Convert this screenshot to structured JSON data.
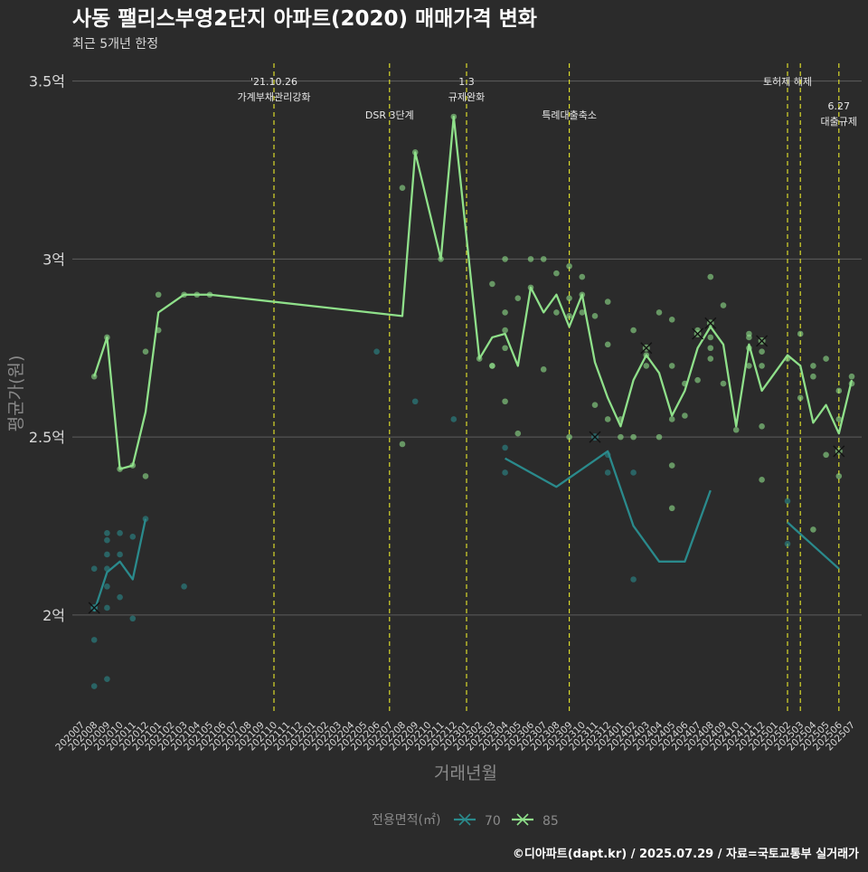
{
  "colors": {
    "background": "#2b2b2b",
    "grid": "#5e5e5e",
    "event_line": "#d9d92a",
    "series_70": "#2a8a8c",
    "series_85": "#8fe08a",
    "text": "#d8d8d8",
    "axis_title": "#8a8a8a"
  },
  "footer": "©디아파트(dapt.kr) / 2025.07.29 / 자료=국토교통부 실거래가",
  "chart_data": {
    "type": "line",
    "title": "사동 팰리스부영2단지 아파트(2020) 매매가격 변화",
    "subtitle": "최근 5개년 한정",
    "xlabel": "거래년월",
    "ylabel": "평균가(원)",
    "ylim": [
      1.72,
      3.55
    ],
    "yticks": [
      {
        "value": 2.0,
        "label": "2억"
      },
      {
        "value": 2.5,
        "label": "2.5억"
      },
      {
        "value": 3.0,
        "label": "3억"
      },
      {
        "value": 3.5,
        "label": "3.5억"
      }
    ],
    "categories": [
      "202007",
      "202008",
      "202009",
      "202010",
      "202011",
      "202012",
      "202101",
      "202102",
      "202103",
      "202104",
      "202105",
      "202106",
      "202107",
      "202108",
      "202109",
      "202110",
      "202111",
      "202112",
      "202201",
      "202202",
      "202203",
      "202204",
      "202205",
      "202206",
      "202207",
      "202208",
      "202209",
      "202210",
      "202211",
      "202212",
      "202301",
      "202302",
      "202303",
      "202304",
      "202305",
      "202306",
      "202307",
      "202308",
      "202309",
      "202310",
      "202311",
      "202312",
      "202401",
      "202402",
      "202403",
      "202404",
      "202405",
      "202406",
      "202407",
      "202408",
      "202409",
      "202410",
      "202411",
      "202412",
      "202501",
      "202502",
      "202503",
      "202504",
      "202505",
      "202506",
      "202507"
    ],
    "legend": {
      "title": "전용면적(㎡)",
      "placement": "bottom"
    },
    "events": [
      {
        "x": "202110",
        "label_lines": [
          "'21.10.26",
          "가계부채관리강화"
        ],
        "tier": 1
      },
      {
        "x": "202207",
        "label_lines": [
          "DSR 3단계"
        ],
        "tier": 2
      },
      {
        "x": "202301",
        "label_lines": [
          "1.3",
          "규제완화"
        ],
        "tier": 1
      },
      {
        "x": "202309",
        "label_lines": [
          "특례대출축소"
        ],
        "tier": 2
      },
      {
        "x": "202502",
        "label_lines": [
          "토허제 해제"
        ],
        "tier": 1
      },
      {
        "x": "202503",
        "label_lines": [],
        "tier": 1
      },
      {
        "x": "202506",
        "label_lines": [
          "6.27",
          "대출규제"
        ],
        "tier": 3
      }
    ],
    "series": [
      {
        "name": "70",
        "color_key": "series_70",
        "line": [
          [
            "202008",
            2.01
          ],
          [
            "202009",
            2.12
          ],
          [
            "202010",
            2.15
          ],
          [
            "202011",
            2.1
          ],
          [
            "202012",
            2.27
          ],
          null,
          [
            "202304",
            2.44
          ],
          [
            "202308",
            2.36
          ],
          [
            "202312",
            2.46
          ],
          [
            "202402",
            2.25
          ],
          [
            "202404",
            2.15
          ],
          [
            "202406",
            2.15
          ],
          [
            "202408",
            2.35
          ],
          null,
          [
            "202502",
            2.26
          ],
          [
            "202506",
            2.13
          ]
        ],
        "points": [
          [
            "202008",
            2.02
          ],
          [
            "202008",
            1.93
          ],
          [
            "202008",
            1.8
          ],
          [
            "202008",
            2.13
          ],
          [
            "202009",
            2.23
          ],
          [
            "202009",
            2.21
          ],
          [
            "202009",
            2.17
          ],
          [
            "202009",
            2.13
          ],
          [
            "202009",
            2.08
          ],
          [
            "202009",
            2.02
          ],
          [
            "202009",
            1.82
          ],
          [
            "202010",
            2.23
          ],
          [
            "202010",
            2.17
          ],
          [
            "202010",
            2.05
          ],
          [
            "202011",
            2.22
          ],
          [
            "202011",
            1.99
          ],
          [
            "202012",
            2.27
          ],
          [
            "202103",
            2.08
          ],
          [
            "202206",
            2.74
          ],
          [
            "202209",
            2.6
          ],
          [
            "202212",
            2.55
          ],
          [
            "202304",
            2.47
          ],
          [
            "202304",
            2.4
          ],
          [
            "202312",
            2.45
          ],
          [
            "202312",
            2.4
          ],
          [
            "202402",
            2.4
          ],
          [
            "202402",
            2.1
          ],
          [
            "202502",
            2.32
          ],
          [
            "202502",
            2.2
          ]
        ],
        "markers": [
          [
            "202008",
            2.02
          ],
          [
            "202311",
            2.5
          ]
        ]
      },
      {
        "name": "85",
        "color_key": "series_85",
        "line": [
          [
            "202008",
            2.67
          ],
          [
            "202009",
            2.78
          ],
          [
            "202010",
            2.41
          ],
          [
            "202011",
            2.42
          ],
          [
            "202012",
            2.57
          ],
          [
            "202101",
            2.85
          ],
          [
            "202103",
            2.9
          ],
          [
            "202104",
            2.9
          ],
          [
            "202105",
            2.9
          ],
          [
            "202208",
            2.84
          ],
          [
            "202209",
            3.3
          ],
          [
            "202211",
            3.0
          ],
          [
            "202212",
            3.4
          ],
          [
            "202302",
            2.72
          ],
          [
            "202303",
            2.78
          ],
          [
            "202304",
            2.79
          ],
          [
            "202305",
            2.7
          ],
          [
            "202306",
            2.92
          ],
          [
            "202307",
            2.85
          ],
          [
            "202308",
            2.9
          ],
          [
            "202309",
            2.81
          ],
          [
            "202310",
            2.9
          ],
          [
            "202311",
            2.71
          ],
          [
            "202312",
            2.61
          ],
          [
            "202401",
            2.53
          ],
          [
            "202402",
            2.66
          ],
          [
            "202403",
            2.73
          ],
          [
            "202404",
            2.68
          ],
          [
            "202405",
            2.56
          ],
          [
            "202406",
            2.63
          ],
          [
            "202407",
            2.75
          ],
          [
            "202408",
            2.81
          ],
          [
            "202409",
            2.76
          ],
          [
            "202410",
            2.53
          ],
          [
            "202411",
            2.76
          ],
          [
            "202412",
            2.63
          ],
          [
            "202501",
            2.68
          ],
          [
            "202502",
            2.73
          ],
          [
            "202503",
            2.7
          ],
          [
            "202504",
            2.54
          ],
          [
            "202505",
            2.59
          ],
          [
            "202506",
            2.51
          ],
          [
            "202507",
            2.66
          ]
        ],
        "points": [
          [
            "202008",
            2.67
          ],
          [
            "202009",
            2.78
          ],
          [
            "202010",
            2.41
          ],
          [
            "202011",
            2.42
          ],
          [
            "202012",
            2.74
          ],
          [
            "202012",
            2.39
          ],
          [
            "202101",
            2.9
          ],
          [
            "202101",
            2.8
          ],
          [
            "202103",
            2.9
          ],
          [
            "202104",
            2.9
          ],
          [
            "202105",
            2.9
          ],
          [
            "202208",
            3.2
          ],
          [
            "202208",
            2.48
          ],
          [
            "202209",
            3.3
          ],
          [
            "202211",
            3.0
          ],
          [
            "202212",
            3.4
          ],
          [
            "202302",
            2.72
          ],
          [
            "202303",
            2.93
          ],
          [
            "202303",
            2.7
          ],
          [
            "202303",
            2.7
          ],
          [
            "202304",
            3.0
          ],
          [
            "202304",
            2.85
          ],
          [
            "202304",
            2.8
          ],
          [
            "202304",
            2.75
          ],
          [
            "202304",
            2.6
          ],
          [
            "202305",
            2.89
          ],
          [
            "202305",
            2.51
          ],
          [
            "202306",
            3.0
          ],
          [
            "202306",
            2.92
          ],
          [
            "202307",
            3.0
          ],
          [
            "202307",
            2.69
          ],
          [
            "202308",
            2.96
          ],
          [
            "202308",
            2.85
          ],
          [
            "202309",
            2.98
          ],
          [
            "202309",
            2.89
          ],
          [
            "202309",
            2.84
          ],
          [
            "202309",
            2.5
          ],
          [
            "202310",
            2.95
          ],
          [
            "202310",
            2.9
          ],
          [
            "202310",
            2.85
          ],
          [
            "202311",
            2.84
          ],
          [
            "202311",
            2.59
          ],
          [
            "202312",
            2.88
          ],
          [
            "202312",
            2.76
          ],
          [
            "202312",
            2.55
          ],
          [
            "202401",
            2.55
          ],
          [
            "202401",
            2.5
          ],
          [
            "202402",
            2.8
          ],
          [
            "202402",
            2.5
          ],
          [
            "202403",
            2.73
          ],
          [
            "202403",
            2.7
          ],
          [
            "202404",
            2.85
          ],
          [
            "202404",
            2.5
          ],
          [
            "202405",
            2.83
          ],
          [
            "202405",
            2.7
          ],
          [
            "202405",
            2.55
          ],
          [
            "202405",
            2.42
          ],
          [
            "202405",
            2.3
          ],
          [
            "202406",
            2.65
          ],
          [
            "202406",
            2.56
          ],
          [
            "202407",
            2.66
          ],
          [
            "202407",
            2.8
          ],
          [
            "202408",
            2.95
          ],
          [
            "202408",
            2.78
          ],
          [
            "202408",
            2.75
          ],
          [
            "202408",
            2.72
          ],
          [
            "202409",
            2.87
          ],
          [
            "202409",
            2.65
          ],
          [
            "202410",
            2.52
          ],
          [
            "202411",
            2.79
          ],
          [
            "202411",
            2.78
          ],
          [
            "202411",
            2.75
          ],
          [
            "202411",
            2.7
          ],
          [
            "202412",
            2.74
          ],
          [
            "202412",
            2.7
          ],
          [
            "202412",
            2.53
          ],
          [
            "202412",
            2.38
          ],
          [
            "202502",
            2.72
          ],
          [
            "202503",
            2.79
          ],
          [
            "202503",
            2.61
          ],
          [
            "202504",
            2.7
          ],
          [
            "202504",
            2.67
          ],
          [
            "202504",
            2.24
          ],
          [
            "202505",
            2.72
          ],
          [
            "202505",
            2.45
          ],
          [
            "202506",
            2.63
          ],
          [
            "202506",
            2.55
          ],
          [
            "202506",
            2.39
          ],
          [
            "202507",
            2.67
          ],
          [
            "202507",
            2.65
          ]
        ],
        "markers": [
          [
            "202403",
            2.75
          ],
          [
            "202407",
            2.79
          ],
          [
            "202408",
            2.82
          ],
          [
            "202412",
            2.77
          ],
          [
            "202506",
            2.46
          ]
        ]
      }
    ]
  }
}
